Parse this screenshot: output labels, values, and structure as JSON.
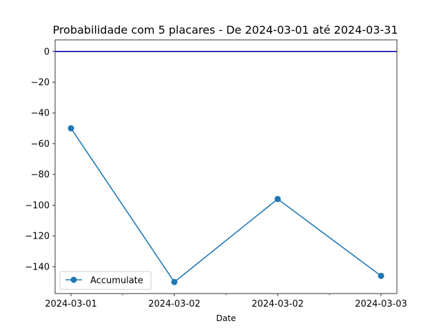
{
  "chart_data": {
    "type": "line",
    "title": "Probabilidade com 5 placares - De 2024-03-01 até 2024-03-31",
    "xlabel": "Date",
    "ylabel": "",
    "x_tick_labels": [
      "2024-03-01",
      "2024-03-02",
      "2024-03-02",
      "2024-03-03"
    ],
    "ylim": [
      -157.5,
      7.5
    ],
    "y_ticks": [
      0,
      -20,
      -40,
      -60,
      -80,
      -100,
      -120,
      -140
    ],
    "y_tick_labels": [
      "0",
      "−20",
      "−40",
      "−60",
      "−80",
      "−100",
      "−120",
      "−140"
    ],
    "grid": false,
    "legend_position": "lower-left",
    "reference_line": {
      "y": 0,
      "color": "#0000aa"
    },
    "series": [
      {
        "name": "Accumulate",
        "color": "#1f77b4",
        "x_index": [
          0,
          1,
          2,
          3
        ],
        "values": [
          -50,
          -150,
          -96,
          -146
        ]
      }
    ]
  }
}
